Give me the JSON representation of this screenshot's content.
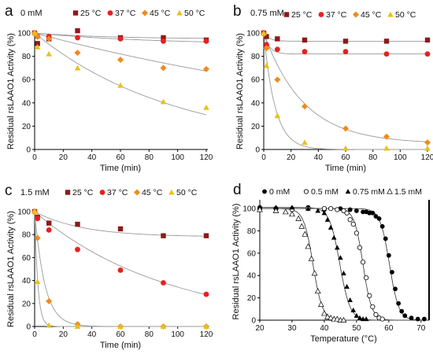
{
  "chart_data": [
    {
      "id": "a",
      "type": "scatter",
      "panel_label": "a",
      "condition": "0 mM",
      "xlabel": "Time (min)",
      "ylabel": "Residual rsLAAO1 Activity (%)",
      "xlim": [
        0,
        120
      ],
      "ylim": [
        0,
        100
      ],
      "xticks": [
        0,
        20,
        40,
        60,
        80,
        100,
        120
      ],
      "yticks": [
        0,
        20,
        40,
        60,
        80,
        100
      ],
      "legend": "top",
      "series": [
        {
          "name": "25 °C",
          "color": "#8b1a1a",
          "marker": "square",
          "x": [
            0,
            2,
            10,
            30,
            60,
            90,
            120
          ],
          "y": [
            100,
            91,
            95,
            102,
            96,
            96,
            94
          ],
          "fit": {
            "model": "exp_plateau",
            "a": 5,
            "k": 0.02,
            "c": 95
          }
        },
        {
          "name": "37 °C",
          "color": "#e8201f",
          "marker": "circle",
          "x": [
            0,
            2,
            10,
            30,
            60,
            90,
            120
          ],
          "y": [
            100,
            97,
            97,
            96,
            95,
            93,
            93
          ],
          "fit": {
            "model": "exp_plateau",
            "a": 10,
            "k": 0.012,
            "c": 90
          }
        },
        {
          "name": "45 °C",
          "color": "#f08a1c",
          "marker": "diamond",
          "x": [
            0,
            2,
            10,
            30,
            60,
            90,
            120
          ],
          "y": [
            100,
            97,
            95,
            83,
            77,
            70,
            69
          ],
          "fit": {
            "model": "exp_plateau",
            "a": 100,
            "k": 0.0033,
            "c": 0
          }
        },
        {
          "name": "50 °C",
          "color": "#e8c21a",
          "marker": "triangle",
          "x": [
            0,
            2,
            10,
            30,
            60,
            90,
            120
          ],
          "y": [
            100,
            88,
            82,
            70,
            55,
            41,
            36
          ],
          "fit": {
            "model": "exp_plateau",
            "a": 100,
            "k": 0.0101,
            "c": 0
          }
        }
      ]
    },
    {
      "id": "b",
      "type": "scatter",
      "panel_label": "b",
      "condition": "0.75 mM",
      "xlabel": "Time (min)",
      "ylabel": "Residual rsLAAO1 Activity (%)",
      "xlim": [
        0,
        120
      ],
      "ylim": [
        0,
        100
      ],
      "xticks": [
        0,
        20,
        40,
        60,
        80,
        100,
        120
      ],
      "yticks": [
        0,
        20,
        40,
        60,
        80,
        100
      ],
      "legend": "top",
      "series": [
        {
          "name": "25 °C",
          "color": "#8b1a1a",
          "marker": "square",
          "x": [
            0,
            2,
            10,
            30,
            60,
            90,
            120
          ],
          "y": [
            100,
            97,
            95,
            94,
            93,
            93,
            94
          ],
          "fit": {
            "model": "exp_plateau",
            "a": 7,
            "k": 0.25,
            "c": 93
          }
        },
        {
          "name": "37 °C",
          "color": "#e8201f",
          "marker": "circle",
          "x": [
            0,
            2,
            10,
            30,
            60,
            90,
            120
          ],
          "y": [
            100,
            90,
            86,
            84,
            84,
            82,
            82
          ],
          "fit": {
            "model": "exp_plateau",
            "a": 18,
            "k": 0.25,
            "c": 82
          }
        },
        {
          "name": "45 °C",
          "color": "#f08a1c",
          "marker": "diamond",
          "x": [
            0,
            2,
            10,
            30,
            60,
            90,
            120
          ],
          "y": [
            99,
            87,
            60,
            37,
            18,
            11,
            6
          ],
          "fit": {
            "model": "exp_plateau",
            "a": 95,
            "k": 0.034,
            "c": 5
          }
        },
        {
          "name": "50 °C",
          "color": "#e8c21a",
          "marker": "triangle",
          "x": [
            0,
            2,
            10,
            30,
            60,
            90,
            120
          ],
          "y": [
            100,
            72,
            29,
            6,
            1,
            1,
            1
          ],
          "fit": {
            "model": "exp_plateau",
            "a": 100,
            "k": 0.12,
            "c": 0
          }
        }
      ]
    },
    {
      "id": "c",
      "type": "scatter",
      "panel_label": "c",
      "condition": "1.5 mM",
      "xlabel": "Time (min)",
      "ylabel": "Residual rsLAAO1 Activity (%)",
      "xlim": [
        0,
        120
      ],
      "ylim": [
        0,
        100
      ],
      "xticks": [
        0,
        20,
        40,
        60,
        80,
        100,
        120
      ],
      "yticks": [
        0,
        20,
        40,
        60,
        80,
        100
      ],
      "legend": "top",
      "series": [
        {
          "name": "25 °C",
          "color": "#8b1a1a",
          "marker": "square",
          "x": [
            0,
            2,
            10,
            30,
            60,
            90,
            120
          ],
          "y": [
            100,
            95,
            90,
            89,
            85,
            79,
            79
          ],
          "fit": {
            "model": "exp_plateau",
            "a": 22,
            "k": 0.03,
            "c": 78
          }
        },
        {
          "name": "37 °C",
          "color": "#e8201f",
          "marker": "circle",
          "x": [
            0,
            2,
            10,
            30,
            60,
            90,
            120
          ],
          "y": [
            100,
            94,
            84,
            67,
            49,
            38,
            28
          ],
          "fit": {
            "model": "exp_plateau",
            "a": 100,
            "k": 0.0107,
            "c": 0
          }
        },
        {
          "name": "45 °C",
          "color": "#f08a1c",
          "marker": "diamond",
          "x": [
            0,
            2,
            10,
            30,
            60,
            90,
            120
          ],
          "y": [
            100,
            77,
            22,
            2,
            0,
            0,
            0
          ],
          "fit": {
            "model": "exp_plateau",
            "a": 100,
            "k": 0.14,
            "c": 0
          }
        },
        {
          "name": "50 °C",
          "color": "#e8c21a",
          "marker": "triangle",
          "x": [
            0,
            2,
            10,
            30,
            60,
            90,
            120
          ],
          "y": [
            100,
            39,
            1,
            0,
            0,
            0,
            0
          ],
          "fit": {
            "model": "exp_plateau",
            "a": 100,
            "k": 0.45,
            "c": 0
          }
        }
      ]
    },
    {
      "id": "d",
      "type": "scatter",
      "panel_label": "d",
      "condition": "",
      "xlabel": "Temperature (°C)",
      "ylabel": "Residual rsLAAO1 Activity (%)",
      "xlim": [
        20,
        72
      ],
      "ylim": [
        0,
        105
      ],
      "xticks": [
        20,
        30,
        40,
        50,
        60,
        70
      ],
      "yticks": [
        0,
        20,
        40,
        60,
        80,
        100
      ],
      "legend": "top",
      "series": [
        {
          "name": "0 mM",
          "color": "#000000",
          "marker": "circle-filled",
          "x": [
            20,
            25,
            30,
            35,
            40,
            45,
            48,
            50,
            52,
            53,
            54,
            55,
            56,
            57,
            58,
            59,
            60,
            61,
            62,
            63,
            64,
            65,
            67,
            69,
            71
          ],
          "y": [
            101,
            100,
            100,
            101,
            99,
            100,
            99,
            98,
            97,
            97,
            96,
            96,
            93,
            91,
            84,
            73,
            58,
            43,
            28,
            15,
            8,
            4,
            2,
            1,
            1
          ],
          "fit": {
            "model": "sigmoid",
            "tm": 60.2,
            "s": 1.45,
            "top": 100
          }
        },
        {
          "name": "0.5 mM",
          "color": "#000000",
          "marker": "circle-open",
          "x": [
            20,
            25,
            30,
            35,
            40,
            42,
            44,
            46,
            47,
            48,
            49,
            50,
            51,
            52,
            53,
            54,
            55,
            56,
            57,
            58
          ],
          "y": [
            100,
            100,
            99,
            100,
            100,
            100,
            99,
            98,
            96,
            90,
            86,
            78,
            65,
            52,
            38,
            22,
            12,
            5,
            2,
            1
          ],
          "fit": {
            "model": "sigmoid",
            "tm": 52.0,
            "s": 1.35,
            "top": 100
          }
        },
        {
          "name": "0.75 mM",
          "color": "#000000",
          "marker": "triangle-filled",
          "x": [
            20,
            25,
            30,
            35,
            38,
            40,
            41,
            42,
            43,
            44,
            45,
            46,
            47,
            48,
            49,
            50,
            51,
            52,
            53
          ],
          "y": [
            101,
            101,
            101,
            100,
            98,
            96,
            90,
            83,
            74,
            65,
            56,
            42,
            30,
            18,
            9,
            4,
            2,
            1,
            1
          ],
          "fit": {
            "model": "sigmoid",
            "tm": 44.8,
            "s": 1.6,
            "top": 101
          }
        },
        {
          "name": "1.5 mM",
          "color": "#000000",
          "marker": "triangle-open",
          "x": [
            20,
            25,
            28,
            30,
            32,
            33,
            34,
            35,
            36,
            37,
            38,
            39,
            40,
            41,
            42,
            43,
            44,
            45,
            46
          ],
          "y": [
            99,
            98,
            97,
            95,
            91,
            84,
            77,
            66,
            55,
            42,
            26,
            14,
            6,
            3,
            2,
            1,
            1,
            0,
            0
          ],
          "fit": {
            "model": "sigmoid",
            "tm": 36.5,
            "s": 1.45,
            "top": 100
          }
        }
      ]
    }
  ]
}
